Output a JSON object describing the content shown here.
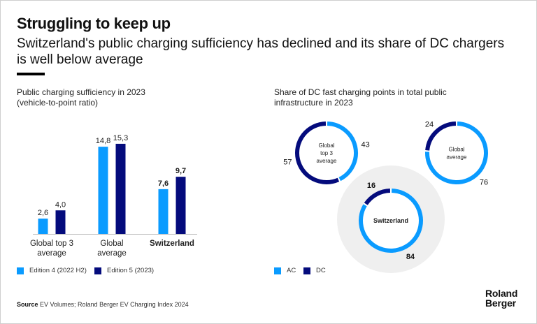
{
  "header": {
    "title": "Struggling to keep up",
    "subtitle": "Switzerland's public charging sufficiency has declined and its share of DC chargers is well below average"
  },
  "colors": {
    "edition4": "#0a9bff",
    "edition5": "#040b7c",
    "ac": "#0a9bff",
    "dc": "#040b7c",
    "highlight_bg": "#efefef",
    "text": "#111111"
  },
  "chart_data": [
    {
      "type": "bar",
      "title": "Public charging sufficiency in 2023",
      "subtitle": "(vehicle-to-point ratio)",
      "categories": [
        "Global top 3 average",
        "Global average",
        "Switzerland"
      ],
      "category_lines": [
        [
          "Global top 3",
          "average"
        ],
        [
          "Global",
          "average"
        ],
        [
          "Switzerland"
        ]
      ],
      "highlight_category": "Switzerland",
      "series": [
        {
          "name": "Edition 4 (2022 H2)",
          "values": [
            2.6,
            14.8,
            7.6
          ],
          "labels": [
            "2,6",
            "14,8",
            "7,6"
          ]
        },
        {
          "name": "Edition 5 (2023)",
          "values": [
            4.0,
            15.3,
            9.7
          ],
          "labels": [
            "4,0",
            "15,3",
            "9,7"
          ]
        }
      ],
      "ylim": [
        0,
        16
      ],
      "grid": false,
      "legend": "bottom-left",
      "xlabel": "",
      "ylabel": ""
    },
    {
      "type": "pie",
      "title": "Share of DC fast charging points in total public infrastructure in 2023",
      "legend_entries": [
        "AC",
        "DC"
      ],
      "legend": "bottom-left",
      "donuts": [
        {
          "name": "Global top 3 average",
          "label_lines": [
            "Global",
            "top 3",
            "average"
          ],
          "ac": 43,
          "dc": 57,
          "highlight": false
        },
        {
          "name": "Global average",
          "label_lines": [
            "Global",
            "average"
          ],
          "ac": 76,
          "dc": 24,
          "highlight": false
        },
        {
          "name": "Switzerland",
          "label_lines": [
            "Switzerland"
          ],
          "ac": 84,
          "dc": 16,
          "highlight": true
        }
      ]
    }
  ],
  "left_panel": {
    "title_line1": "Public charging sufficiency in 2023",
    "title_line2": "(vehicle-to-point ratio)"
  },
  "right_panel": {
    "title_line1": "Share of DC fast charging points in total public",
    "title_line2": "infrastructure in 2023"
  },
  "legends": {
    "bar": [
      "Edition 4 (2022 H2)",
      "Edition 5 (2023)"
    ],
    "donut": [
      "AC",
      "DC"
    ]
  },
  "footer": {
    "source_label": "Source",
    "source_text": " EV Volumes; Roland Berger EV Charging Index 2024",
    "logo_line1": "Roland",
    "logo_line2": "Berger"
  }
}
